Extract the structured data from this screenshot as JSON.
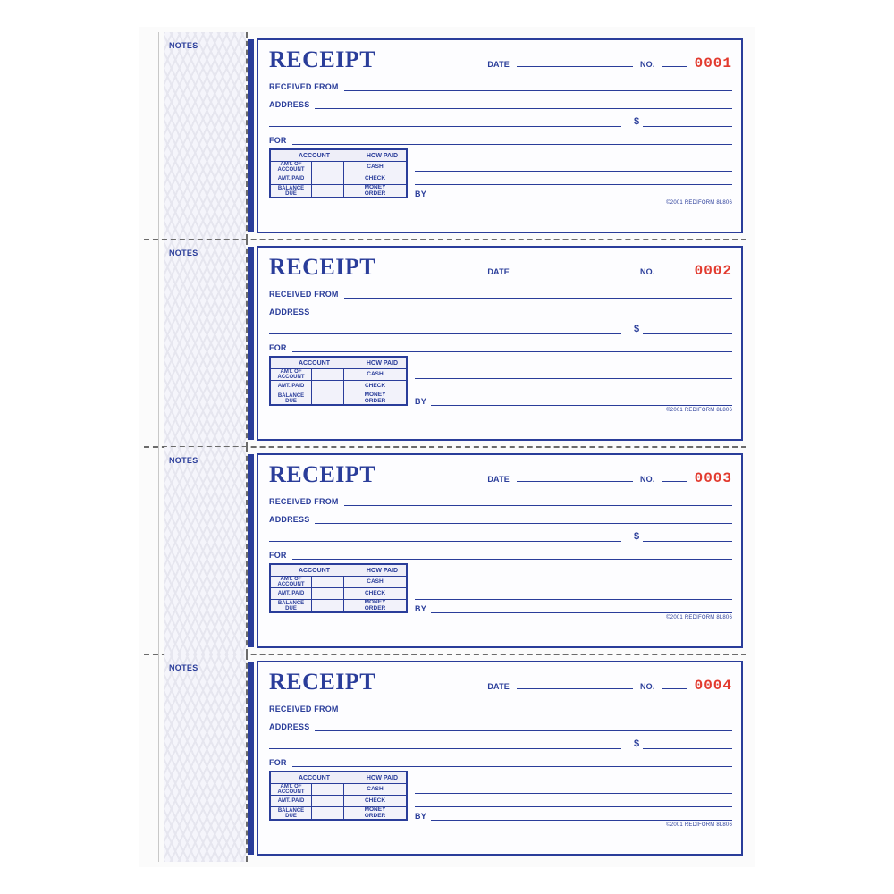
{
  "colors": {
    "ink": "#2a3d9a",
    "serial": "#e23a2e",
    "perforation": "#6b6b6b",
    "pattern_light": "#e6e6ef",
    "pattern_bg": "#f5f5fb",
    "page_bg": "#fbfbfb"
  },
  "labels": {
    "notes": "NOTES",
    "title": "RECEIPT",
    "date": "DATE",
    "no": "NO.",
    "received_from": "RECEIVED FROM",
    "address": "ADDRESS",
    "for": "FOR",
    "dollar": "$",
    "by": "BY",
    "account": "ACCOUNT",
    "how_paid": "HOW PAID",
    "amt_of_account": "AMT. OF ACCOUNT",
    "amt_paid": "AMT. PAID",
    "balance_due": "BALANCE DUE",
    "cash": "CASH",
    "check": "CHECK",
    "money_order": "MONEY ORDER"
  },
  "footer": {
    "copyright": "©2001",
    "brand": "REDIFORM",
    "code": "8L806"
  },
  "receipts": [
    {
      "serial": "0001"
    },
    {
      "serial": "0002"
    },
    {
      "serial": "0003"
    },
    {
      "serial": "0004"
    }
  ]
}
